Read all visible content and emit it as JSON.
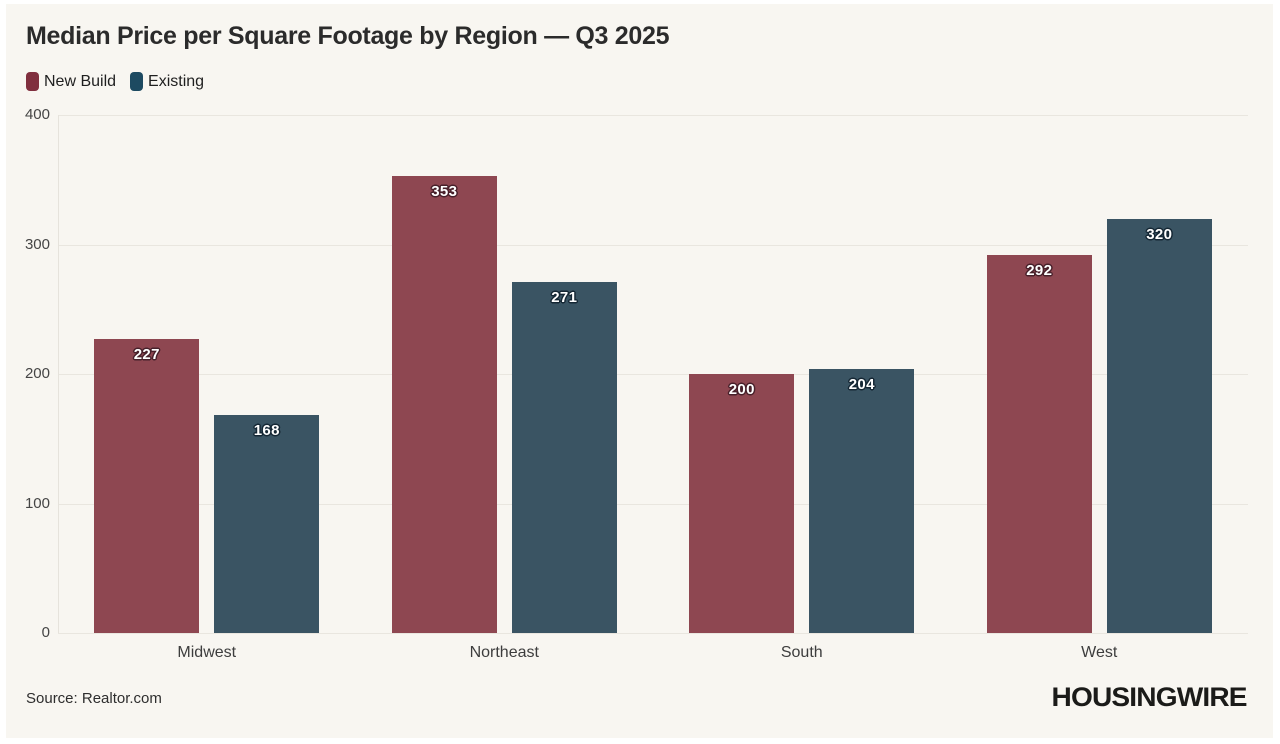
{
  "title": "Median Price per Square Footage by Region — Q3 2025",
  "footer": {
    "source": "Source: Realtor.com",
    "logo": "HOUSINGWIRE"
  },
  "colors": {
    "background": "#f8f6f1",
    "frame": "#ffffff",
    "grid": "#e9e6df",
    "title_text": "#2b2b2b",
    "axis_text": "#454545",
    "legend_swatches": [
      "#802f3e",
      "#1d4a61"
    ],
    "bar_fills": [
      "#8e4751",
      "#3a5463"
    ],
    "value_label_outlines": [
      "#47202a",
      "#152734"
    ]
  },
  "chart_data": {
    "type": "bar",
    "title": "Median Price per Square Footage by Region — Q3 2025",
    "categories": [
      "Midwest",
      "Northeast",
      "South",
      "West"
    ],
    "series": [
      {
        "name": "New Build",
        "color": "#8e4751",
        "values": [
          227,
          353,
          200,
          292
        ]
      },
      {
        "name": "Existing",
        "color": "#3a5463",
        "values": [
          168,
          271,
          204,
          320
        ]
      }
    ],
    "xlabel": "",
    "ylabel": "",
    "ylim": [
      0,
      400
    ],
    "yticks": [
      0,
      100,
      200,
      300,
      400
    ],
    "grid": true,
    "legend_position": "top-left",
    "value_labels": true
  }
}
